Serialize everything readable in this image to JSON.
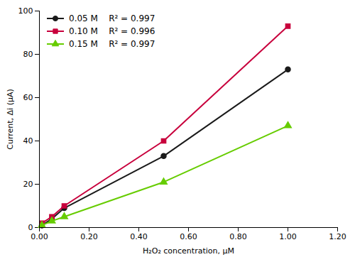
{
  "chart_data": {
    "type": "line",
    "xlabel": "H₂O₂ concentration, μM",
    "ylabel": "Current, Δi (μA)",
    "x": [
      0.01,
      0.05,
      0.1,
      0.5,
      1.0
    ],
    "series": [
      {
        "name": "0.05 M    R² = 0.997",
        "color": "#1a1a1a",
        "marker": "circle",
        "values": [
          1.0,
          4.0,
          9.0,
          33.0,
          73.0
        ]
      },
      {
        "name": "0.10 M    R² = 0.996",
        "color": "#c8003c",
        "marker": "square",
        "values": [
          2.0,
          5.0,
          10.0,
          40.0,
          93.0
        ]
      },
      {
        "name": "0.15 M    R² = 0.997",
        "color": "#66cc00",
        "marker": "triangle",
        "values": [
          1.0,
          3.0,
          5.0,
          21.0,
          47.0
        ]
      }
    ],
    "xlim": [
      0.0,
      1.2
    ],
    "ylim": [
      0,
      100
    ],
    "xticks": [
      {
        "value": 0.0,
        "label": "0.00"
      },
      {
        "value": 0.2,
        "label": "0.20"
      },
      {
        "value": 0.4,
        "label": "0.40"
      },
      {
        "value": 0.6,
        "label": "0.60"
      },
      {
        "value": 0.8,
        "label": "0.80"
      },
      {
        "value": 1.0,
        "label": "1.00"
      },
      {
        "value": 1.2,
        "label": "1.20"
      }
    ],
    "yticks": [
      0,
      20,
      40,
      60,
      80,
      100
    ],
    "legend": "upper left",
    "grid": false
  }
}
